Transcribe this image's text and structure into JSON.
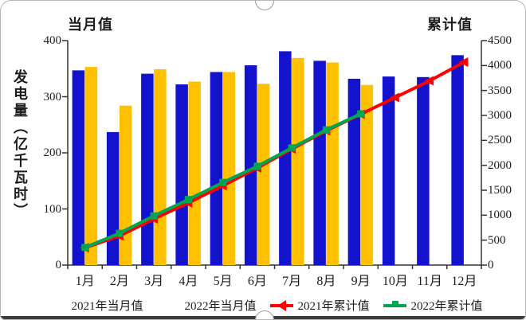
{
  "chart_data": {
    "type": "combo-bar-line",
    "y_label": "发电量（亿千瓦时）",
    "categories": [
      "1月",
      "2月",
      "3月",
      "4月",
      "5月",
      "6月",
      "7月",
      "8月",
      "9月",
      "10月",
      "11月",
      "12月"
    ],
    "left_axis": {
      "title": "当月值",
      "min": 0,
      "max": 400,
      "step": 100
    },
    "right_axis": {
      "title": "累计值",
      "min": 0,
      "max": 4500,
      "step": 500
    },
    "series": [
      {
        "name": "2021年当月值",
        "type": "bar",
        "axis": "left",
        "color": "#1313ce",
        "values": [
          347,
          237,
          341,
          322,
          344,
          356,
          381,
          364,
          332,
          336,
          335,
          374
        ]
      },
      {
        "name": "2022年当月值",
        "type": "bar",
        "axis": "left",
        "color": "#ffc000",
        "values": [
          353,
          284,
          349,
          327,
          344,
          323,
          369,
          361,
          321,
          null,
          null,
          null
        ]
      },
      {
        "name": "2021年累计值",
        "type": "line",
        "axis": "right",
        "color": "#ff0000",
        "marker": "triangle-left",
        "values": [
          347,
          584,
          925,
          1247,
          1591,
          1947,
          2328,
          2692,
          3024,
          3360,
          3695,
          4069
        ]
      },
      {
        "name": "2022年累计值",
        "type": "line",
        "axis": "right",
        "color": "#00a651",
        "marker": "square",
        "values": [
          353,
          637,
          986,
          1313,
          1657,
          1980,
          2349,
          2710,
          3031,
          null,
          null,
          null
        ]
      }
    ],
    "grid": false,
    "legend_position": "bottom"
  },
  "legend": {
    "items": [
      {
        "label": "2021年当月值",
        "color": "#1313ce",
        "kind": "bar"
      },
      {
        "label": "2022年当月值",
        "color": "#ffc000",
        "kind": "bar"
      },
      {
        "label": "2021年累计值",
        "color": "#ff0000",
        "kind": "line-triangle"
      },
      {
        "label": "2022年累计值",
        "color": "#00a651",
        "kind": "line-square"
      }
    ]
  }
}
